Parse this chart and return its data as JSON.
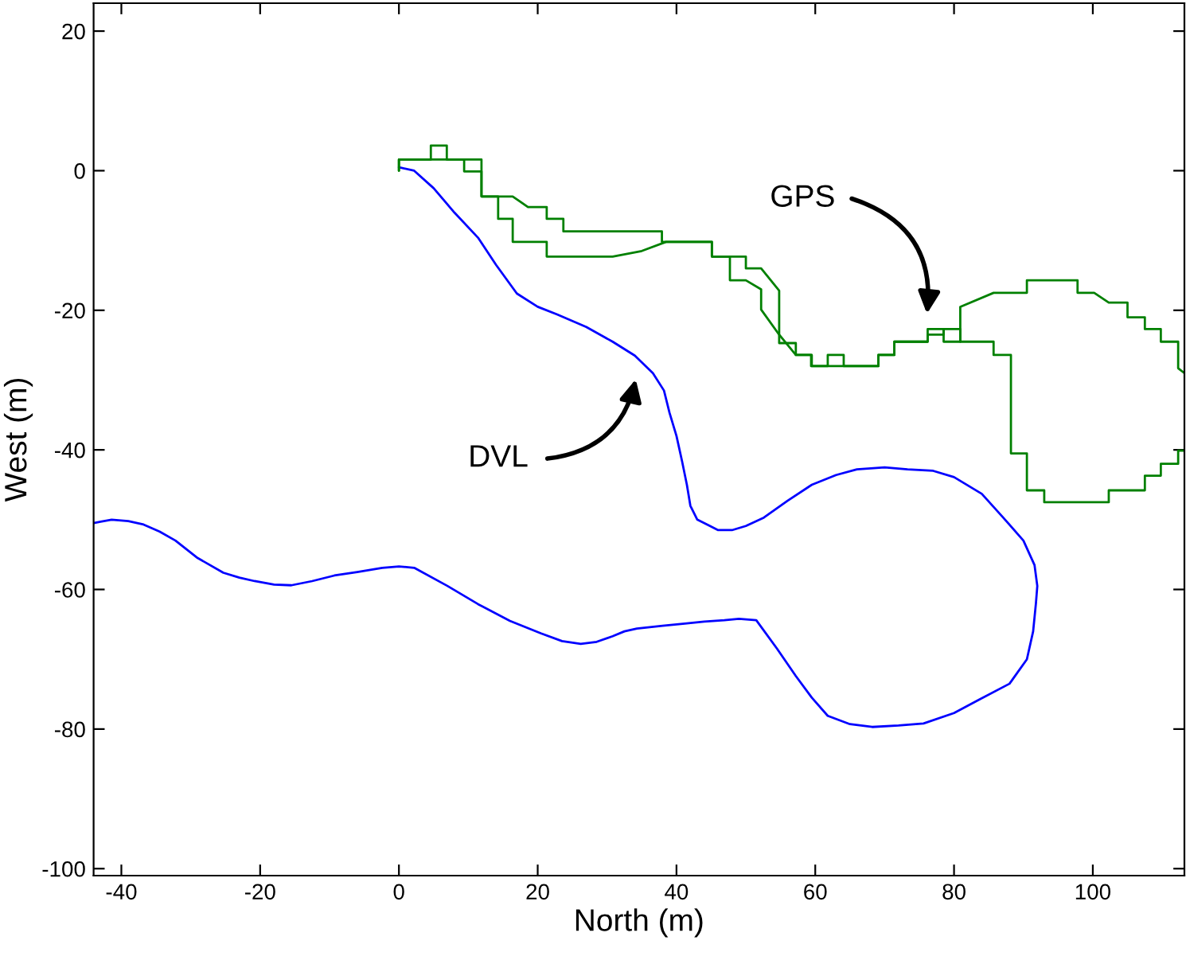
{
  "chart_data": {
    "type": "line",
    "xlabel": "North (m)",
    "ylabel": "West (m)",
    "xlim": [
      -44,
      113.2
    ],
    "ylim": [
      -101,
      24
    ],
    "xticks": [
      -40,
      -20,
      0,
      20,
      40,
      60,
      80,
      100
    ],
    "yticks": [
      -100,
      -80,
      -60,
      -40,
      -20,
      0,
      20
    ],
    "grid": false,
    "legend": false,
    "marker": "none",
    "line_style": "solid",
    "series": [
      {
        "color": "#0000ff",
        "x": [
          0,
          2.2,
          5,
          8,
          11.4,
          14,
          17,
          20,
          22.8,
          27,
          30.8,
          34,
          36.6,
          38.2,
          39,
          40,
          40.8,
          41.5,
          42,
          43,
          44.6,
          46,
          48,
          50,
          52.6,
          56,
          59.5,
          63,
          66,
          70,
          73.3,
          77,
          80,
          84,
          87,
          90,
          91.6,
          92,
          91.8,
          91.4,
          90.5,
          88,
          83.6,
          80,
          75.6,
          72,
          68.2,
          65,
          61.8,
          59.5,
          57.2,
          54.5,
          51.5,
          49,
          46.9,
          44,
          41.2,
          38,
          34.3,
          32.5,
          30.8,
          28.5,
          26.2,
          23.5,
          20.5,
          16,
          11.4,
          7,
          2.2,
          0,
          -2.4,
          -6,
          -9.3,
          -12.5,
          -15.5,
          -18,
          -20.8,
          -23,
          -25.3,
          -29,
          -32.2,
          -34.5,
          -36.8,
          -39,
          -41.4,
          -43,
          -44
        ],
        "values": [
          0.5,
          0,
          -2.5,
          -6,
          -9.6,
          -13.5,
          -17.6,
          -19.5,
          -20.6,
          -22.4,
          -24.5,
          -26.5,
          -29,
          -31.5,
          -34.7,
          -38,
          -41.6,
          -45,
          -48,
          -50,
          -50.8,
          -51.5,
          -51.5,
          -50.9,
          -49.7,
          -47.3,
          -45,
          -43.6,
          -42.8,
          -42.5,
          -42.8,
          -43,
          -43.9,
          -46.3,
          -49.6,
          -53,
          -56.5,
          -59.5,
          -62,
          -66,
          -70,
          -73.5,
          -75.8,
          -77.7,
          -79.2,
          -79.5,
          -79.7,
          -79.3,
          -78.1,
          -75.5,
          -72.4,
          -68.5,
          -64.4,
          -64.2,
          -64.4,
          -64.6,
          -64.9,
          -65.2,
          -65.6,
          -66,
          -66.7,
          -67.5,
          -67.8,
          -67.4,
          -66.3,
          -64.5,
          -62.1,
          -59.5,
          -56.9,
          -56.7,
          -56.9,
          -57.5,
          -58,
          -58.8,
          -59.4,
          -59.3,
          -58.8,
          -58.3,
          -57.6,
          -55.5,
          -53,
          -51.7,
          -50.7,
          -50.2,
          -50,
          -50.3,
          -50.5
        ]
      },
      {
        "color": "#008000",
        "x": [
          0,
          0,
          4.6,
          4.6,
          6.9,
          6.9,
          11.9,
          11.9,
          16.4,
          18.6,
          21.3,
          21.3,
          23.7,
          23.7,
          37.9,
          37.9,
          45.1,
          45.1,
          50,
          50,
          52.2,
          54.8,
          54.8,
          57.2,
          57.2,
          59.5,
          59.5,
          69.1,
          69.1,
          71.4,
          71.4,
          76.2,
          76.2,
          78.5,
          78.5,
          80.9,
          80.9,
          85.7,
          90.5,
          90.5,
          97.8,
          97.8,
          100.2,
          102.3,
          105,
          105,
          107.5,
          107.5,
          109.8,
          109.8,
          112.3,
          112.3,
          113.2
        ],
        "values": [
          0,
          1.6,
          1.6,
          3.6,
          3.6,
          1.6,
          1.6,
          -3.7,
          -3.7,
          -5.2,
          -5.2,
          -6.9,
          -6.9,
          -8.7,
          -8.7,
          -10.2,
          -10.2,
          -12.3,
          -12.3,
          -14,
          -14,
          -17.2,
          -24.7,
          -24.7,
          -26.4,
          -26.4,
          -28,
          -28,
          -26.4,
          -26.4,
          -24.5,
          -24.5,
          -22.7,
          -22.7,
          -24.5,
          -24.5,
          -19.5,
          -17.5,
          -17.5,
          -15.7,
          -15.7,
          -17.5,
          -17.5,
          -18.9,
          -18.9,
          -21,
          -21,
          -22.7,
          -22.7,
          -24.5,
          -24.5,
          -28.3,
          -29
        ]
      },
      {
        "color": "#008000",
        "x": [
          113.2,
          112.3,
          112.3,
          109.8,
          109.8,
          107.5,
          107.5,
          102.3,
          102.3,
          93,
          93,
          90.5,
          90.5,
          88.2,
          88.2,
          85.7,
          85.7,
          80.9,
          80.9,
          78.5,
          78.5,
          76.2,
          76.2,
          71.4,
          71.4,
          69.1,
          69.1,
          64.1,
          64.1,
          61.8,
          61.8,
          59.4,
          59.4,
          57.2,
          54.8,
          52.2,
          52.2,
          50,
          47.7,
          47.7,
          45.1,
          45.1,
          42.7,
          38.5,
          35,
          30.8,
          21.3,
          21.3,
          16.4,
          16.4,
          14.3,
          14.3,
          11.9,
          11.9,
          9.4,
          9.4,
          0,
          0
        ],
        "values": [
          -40.1,
          -40.1,
          -42,
          -42,
          -43.7,
          -43.7,
          -45.8,
          -45.8,
          -47.5,
          -47.5,
          -45.8,
          -45.8,
          -40.5,
          -40.5,
          -26.4,
          -26.4,
          -24.5,
          -24.5,
          -22.7,
          -22.7,
          -23.5,
          -23.5,
          -24.5,
          -24.5,
          -26.4,
          -26.4,
          -28,
          -28,
          -26.4,
          -26.4,
          -28,
          -28,
          -26.4,
          -26.4,
          -23.5,
          -19.9,
          -17,
          -15.7,
          -15.7,
          -12.3,
          -12.3,
          -10.2,
          -10.2,
          -10.2,
          -11.5,
          -12.3,
          -12.3,
          -10.2,
          -10.2,
          -6.9,
          -6.9,
          -3.7,
          -3.7,
          -0.1,
          -0.1,
          1.6,
          1.6,
          0
        ]
      }
    ],
    "annotations": [
      "GPS",
      "DVL"
    ]
  }
}
